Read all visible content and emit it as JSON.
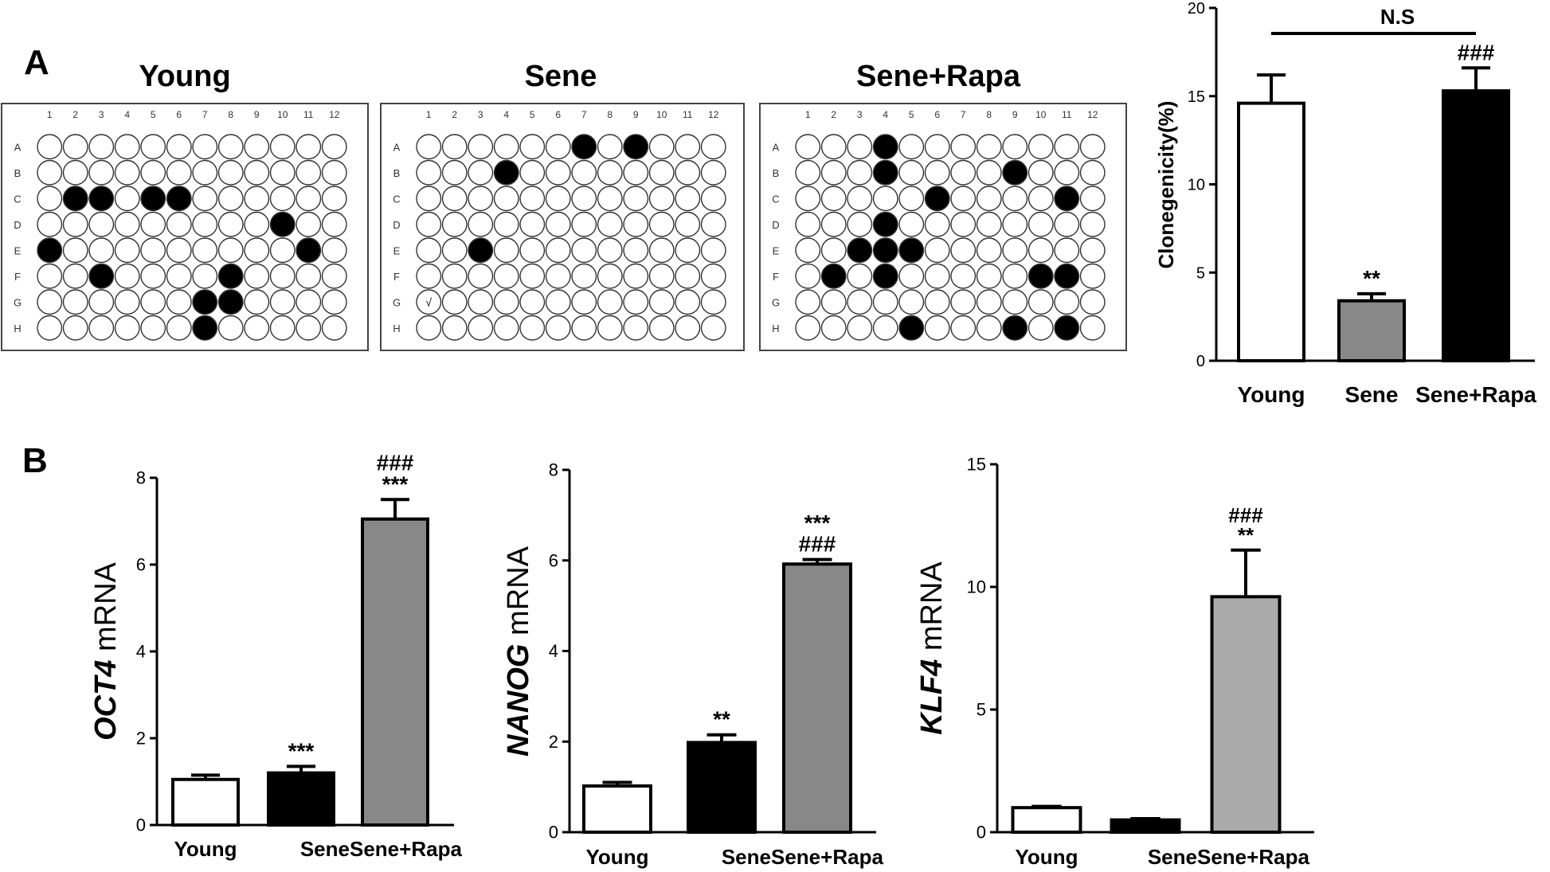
{
  "panel_labels": {
    "a": "A",
    "b": "B"
  },
  "plates": {
    "col_labels": [
      "1",
      "2",
      "3",
      "4",
      "5",
      "6",
      "7",
      "8",
      "9",
      "10",
      "11",
      "12"
    ],
    "row_labels": [
      "A",
      "B",
      "C",
      "D",
      "E",
      "F",
      "G",
      "H"
    ],
    "items": [
      {
        "name": "young",
        "title": "Young",
        "filled": [
          "C2",
          "C3",
          "C5",
          "C6",
          "D10",
          "E1",
          "E11",
          "F3",
          "F8",
          "G7",
          "G8",
          "H7"
        ],
        "marks": []
      },
      {
        "name": "sene",
        "title": "Sene",
        "filled": [
          "A7",
          "A9",
          "B4",
          "E3"
        ],
        "marks": [
          {
            "well": "G1",
            "text": "√"
          }
        ]
      },
      {
        "name": "sene-rapa",
        "title": "Sene+Rapa",
        "filled": [
          "A4",
          "B4",
          "B9",
          "C6",
          "C11",
          "D4",
          "E3",
          "E4",
          "E5",
          "F2",
          "F4",
          "F10",
          "F11",
          "H5",
          "H9",
          "H11"
        ],
        "marks": []
      }
    ]
  },
  "chart_data": [
    {
      "id": "clonegenicity",
      "type": "bar",
      "categories": [
        "Young",
        "Sene",
        "Sene+Rapa"
      ],
      "values": [
        14.6,
        3.4,
        15.3
      ],
      "errors": [
        1.6,
        0.4,
        1.3
      ],
      "fills": [
        "#ffffff",
        "#888888",
        "#000000"
      ],
      "annotations": [
        [],
        [
          "**"
        ],
        [
          "###"
        ]
      ],
      "ylabel": "Clonegenicity(%)",
      "ylabel_italic": "",
      "ylim": [
        0,
        20
      ],
      "yticks": [
        0,
        5,
        10,
        15,
        20
      ],
      "bracket": {
        "from": 0,
        "to": 2,
        "label": "N.S"
      }
    },
    {
      "id": "oct4",
      "type": "bar",
      "categories": [
        "Young",
        "Sene",
        "Sene+Rapa"
      ],
      "values": [
        1.05,
        1.2,
        7.05
      ],
      "errors": [
        0.1,
        0.15,
        0.45
      ],
      "fills": [
        "#ffffff",
        "#000000",
        "#888888"
      ],
      "annotations": [
        [],
        [
          "***"
        ],
        [
          "###",
          "***"
        ]
      ],
      "ylabel": " mRNA",
      "ylabel_italic": "OCT4",
      "ylim": [
        0,
        8
      ],
      "yticks": [
        0,
        2,
        4,
        6,
        8
      ]
    },
    {
      "id": "nanog",
      "type": "bar",
      "categories": [
        "Young",
        "Sene",
        "Sene+Rapa"
      ],
      "values": [
        1.02,
        1.98,
        5.92
      ],
      "errors": [
        0.08,
        0.17,
        0.1
      ],
      "fills": [
        "#ffffff",
        "#000000",
        "#888888"
      ],
      "annotations": [
        [],
        [
          "**"
        ],
        [
          "***",
          "###"
        ]
      ],
      "ylabel": " mRNA",
      "ylabel_italic": "NANOG",
      "ylim": [
        0,
        8
      ],
      "yticks": [
        0,
        2,
        4,
        6,
        8
      ]
    },
    {
      "id": "klf4",
      "type": "bar",
      "categories": [
        "Young",
        "Sene",
        "Sene+Rapa"
      ],
      "values": [
        1.0,
        0.5,
        9.6
      ],
      "errors": [
        0.05,
        0.05,
        1.9
      ],
      "fills": [
        "#ffffff",
        "#000000",
        "#aaaaaa"
      ],
      "annotations": [
        [],
        [],
        [
          "###",
          "**"
        ]
      ],
      "ylabel": " mRNA",
      "ylabel_italic": "KLF4",
      "ylim": [
        0,
        15
      ],
      "yticks": [
        0,
        5,
        10,
        15
      ]
    }
  ]
}
